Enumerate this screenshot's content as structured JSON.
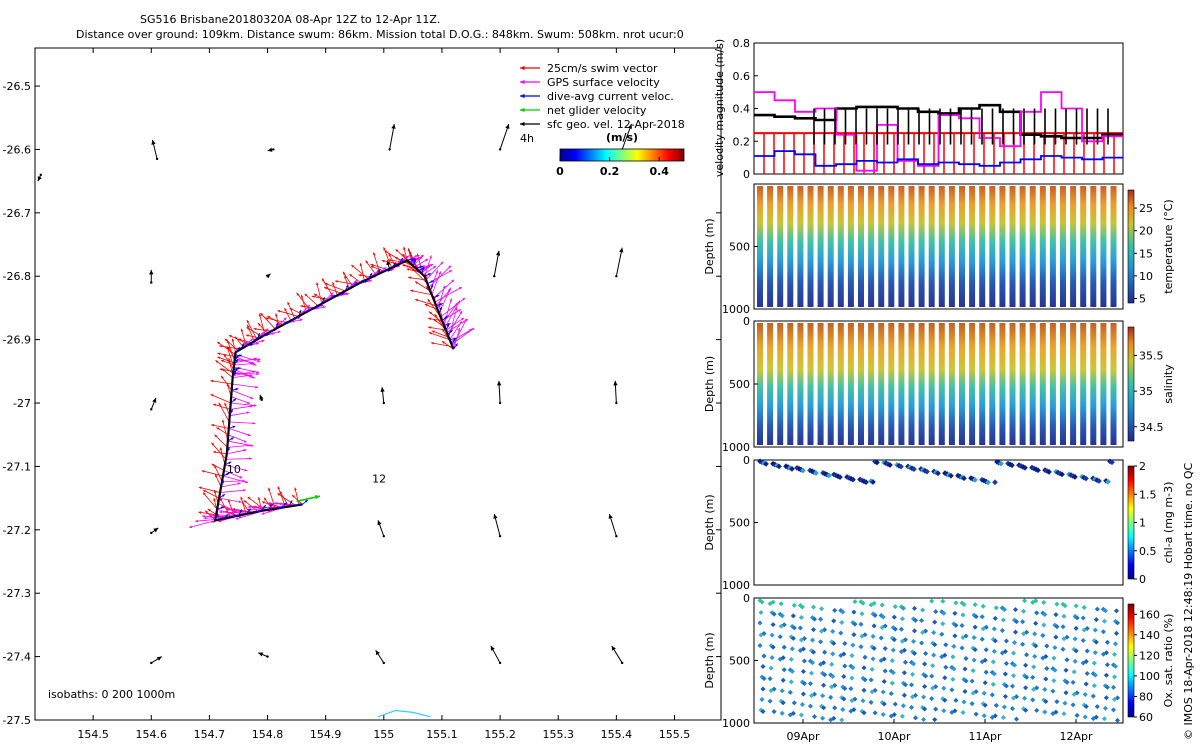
{
  "chart_data": [
    {
      "type": "map-vector",
      "title": "SG516 Brisbane20180320A 08-Apr 12Z to 12-Apr 11Z.",
      "subtitle": "Distance over ground: 109km. Distance swum: 86km. Mission total D.O.G.: 848km. Swum: 508km. nrot ucur:0",
      "x_ticks": [
        154.5,
        154.6,
        154.7,
        154.8,
        154.9,
        155,
        155.1,
        155.2,
        155.3,
        155.4,
        155.5
      ],
      "y_ticks": [
        -26.5,
        -26.6,
        -26.7,
        -26.8,
        -26.9,
        -27,
        -27.1,
        -27.2,
        -27.3,
        -27.4,
        -27.5
      ],
      "x_tick_labels": [
        "154.5",
        "154.6",
        "154.7",
        "154.8",
        "154.9",
        "155",
        "155.1",
        "155.2",
        "155.3",
        "155.4",
        "155.5"
      ],
      "y_tick_labels": [
        "-26.5",
        "-26.6",
        "-26.7",
        "-26.8",
        "-26.9",
        "-27",
        "-27.1",
        "-27.2",
        "-27.3",
        "-27.4",
        "-27.5"
      ],
      "xlim": [
        154.4,
        155.58
      ],
      "ylim": [
        -27.5,
        -26.44
      ],
      "legend": {
        "placement": "top-right",
        "entries": [
          {
            "label": "25cm/s swim vector",
            "color": "#ff0000"
          },
          {
            "label": "GPS surface velocity",
            "color": "#ff00ff"
          },
          {
            "label": "dive-avg current veloc.",
            "color": "#0000ff"
          },
          {
            "label": "net glider velocity",
            "color": "#00cc00"
          },
          {
            "label": "sfc geo. vel. 12-Apr-2018",
            "color": "#000000"
          }
        ],
        "scale_label": "4h"
      },
      "colorbar": {
        "label": "(m/s)",
        "ticks": [
          "0",
          "0.2",
          "0.4"
        ],
        "range": [
          0,
          0.5
        ]
      },
      "annotations": [
        {
          "text": "10",
          "lon": 154.73,
          "lat": -27.11
        },
        {
          "text": "12",
          "lon": 154.98,
          "lat": -27.125
        }
      ],
      "isobaths_label": "isobaths: 0   200  1000m",
      "track": [
        [
          154.86,
          -27.16
        ],
        [
          154.79,
          -27.17
        ],
        [
          154.71,
          -27.185
        ],
        [
          154.73,
          -27.08
        ],
        [
          154.74,
          -26.96
        ],
        [
          154.745,
          -26.92
        ],
        [
          154.8,
          -26.89
        ],
        [
          154.88,
          -26.85
        ],
        [
          154.96,
          -26.81
        ],
        [
          155.04,
          -26.775
        ],
        [
          155.07,
          -26.8
        ],
        [
          155.1,
          -26.87
        ],
        [
          155.12,
          -26.915
        ]
      ],
      "geo_vectors": [
        {
          "lon": 154.61,
          "lat": -26.615,
          "u": -0.008,
          "v": 0.03
        },
        {
          "lon": 154.81,
          "lat": -26.6,
          "u": -0.01,
          "v": -0.002
        },
        {
          "lon": 155.01,
          "lat": -26.6,
          "u": 0.008,
          "v": 0.04
        },
        {
          "lon": 155.2,
          "lat": -26.6,
          "u": 0.015,
          "v": 0.04
        },
        {
          "lon": 155.41,
          "lat": -26.6,
          "u": 0.016,
          "v": 0.04
        },
        {
          "lon": 154.41,
          "lat": -26.64,
          "u": -0.005,
          "v": -0.01
        },
        {
          "lon": 154.6,
          "lat": -26.81,
          "u": 0.0,
          "v": 0.02
        },
        {
          "lon": 154.8,
          "lat": -26.8,
          "u": 0.005,
          "v": 0.004
        },
        {
          "lon": 155.01,
          "lat": -26.79,
          "u": -0.004,
          "v": 0.015
        },
        {
          "lon": 155.19,
          "lat": -26.8,
          "u": 0.008,
          "v": 0.04
        },
        {
          "lon": 155.4,
          "lat": -26.8,
          "u": 0.01,
          "v": 0.045
        },
        {
          "lon": 154.6,
          "lat": -27.01,
          "u": 0.008,
          "v": 0.018
        },
        {
          "lon": 154.79,
          "lat": -26.995,
          "u": -0.003,
          "v": 0.008
        },
        {
          "lon": 155.0,
          "lat": -27.0,
          "u": -0.003,
          "v": 0.025
        },
        {
          "lon": 155.2,
          "lat": -27.0,
          "u": -0.002,
          "v": 0.035
        },
        {
          "lon": 155.4,
          "lat": -27.0,
          "u": -0.002,
          "v": 0.035
        },
        {
          "lon": 154.6,
          "lat": -27.205,
          "u": 0.012,
          "v": 0.008
        },
        {
          "lon": 155.0,
          "lat": -27.21,
          "u": -0.01,
          "v": 0.025
        },
        {
          "lon": 155.2,
          "lat": -27.21,
          "u": -0.01,
          "v": 0.035
        },
        {
          "lon": 155.4,
          "lat": -27.21,
          "u": -0.012,
          "v": 0.035
        },
        {
          "lon": 154.6,
          "lat": -27.41,
          "u": 0.018,
          "v": 0.01
        },
        {
          "lon": 154.8,
          "lat": -27.4,
          "u": -0.016,
          "v": 0.006
        },
        {
          "lon": 155.0,
          "lat": -27.41,
          "u": -0.014,
          "v": 0.02
        },
        {
          "lon": 155.2,
          "lat": -27.41,
          "u": -0.016,
          "v": 0.027
        },
        {
          "lon": 155.41,
          "lat": -27.41,
          "u": -0.018,
          "v": 0.027
        }
      ],
      "isobath_0m": [
        [
          154.99,
          -27.495
        ],
        [
          155.02,
          -27.485
        ],
        [
          155.05,
          -27.488
        ],
        [
          155.08,
          -27.495
        ]
      ]
    },
    {
      "type": "line",
      "ylabel": "velocity magnitude (m/s)",
      "ylim": [
        0,
        0.8
      ],
      "y_ticks": [
        0,
        0.2,
        0.4,
        0.6,
        0.8
      ],
      "y_tick_labels": [
        "0",
        "0.2",
        "0.4",
        "0.6",
        "0.8"
      ],
      "series": [
        {
          "color": "#ff0000",
          "values": [
            0.25
          ]
        },
        {
          "color": "#000000",
          "values": [
            0.36,
            0.35,
            0.34,
            0.33,
            0.4,
            0.41,
            0.41,
            0.4,
            0.38,
            0.37,
            0.4,
            0.42,
            0.38,
            0.24,
            0.23,
            0.22,
            0.22,
            0.24
          ]
        },
        {
          "color": "#ff00ff",
          "values": [
            0.5,
            0.45,
            0.38,
            0.4,
            0.24,
            0.02,
            0.3,
            0.08,
            0.05,
            0.36,
            0.34,
            0.22,
            0.17,
            0.38,
            0.5,
            0.4,
            0.2,
            0.23
          ]
        },
        {
          "color": "#0000ff",
          "values": [
            0.11,
            0.14,
            0.12,
            0.05,
            0.06,
            0.08,
            0.07,
            0.09,
            0.06,
            0.07,
            0.06,
            0.05,
            0.07,
            0.09,
            0.11,
            0.1,
            0.09,
            0.1
          ]
        }
      ]
    },
    {
      "type": "scatter",
      "ylabel": "Depth (m)",
      "y_tick_labels": [
        "500",
        "1000"
      ],
      "ylim": [
        0,
        1000
      ],
      "colorbar": {
        "label": "temperature (°C)",
        "ticks": [
          "5",
          "10",
          "15",
          "20",
          "25"
        ],
        "range": [
          4,
          29
        ]
      }
    },
    {
      "type": "scatter",
      "ylabel": "Depth (m)",
      "y_tick_labels": [
        "0",
        "500",
        "1000"
      ],
      "ylim": [
        0,
        1000
      ],
      "colorbar": {
        "label": "salinity",
        "ticks": [
          "34.5",
          "35",
          "35.5"
        ],
        "range": [
          34.3,
          35.9
        ]
      }
    },
    {
      "type": "scatter",
      "ylabel": "Depth (m)",
      "y_tick_labels": [
        "0",
        "500",
        "1000"
      ],
      "ylim": [
        0,
        1000
      ],
      "colorbar": {
        "label": "chl-a (mg m-3)",
        "ticks": [
          "0",
          "0.5",
          "1",
          "1.5",
          "2"
        ],
        "range": [
          0,
          2
        ]
      }
    },
    {
      "type": "scatter",
      "ylabel": "Depth (m)",
      "y_tick_labels": [
        "0",
        "500",
        "1000"
      ],
      "ylim": [
        0,
        1000
      ],
      "x_tick_labels": [
        "09Apr",
        "10Apr",
        "11Apr",
        "12Apr"
      ],
      "colorbar": {
        "label": "Ox. sat. ratio (%)",
        "ticks": [
          "60",
          "80",
          "100",
          "120",
          "140",
          "160"
        ],
        "range": [
          60,
          170
        ]
      }
    }
  ],
  "footer_note": "© IMOS 18-Apr-2018 12:48:19 Hobart time. no QC"
}
